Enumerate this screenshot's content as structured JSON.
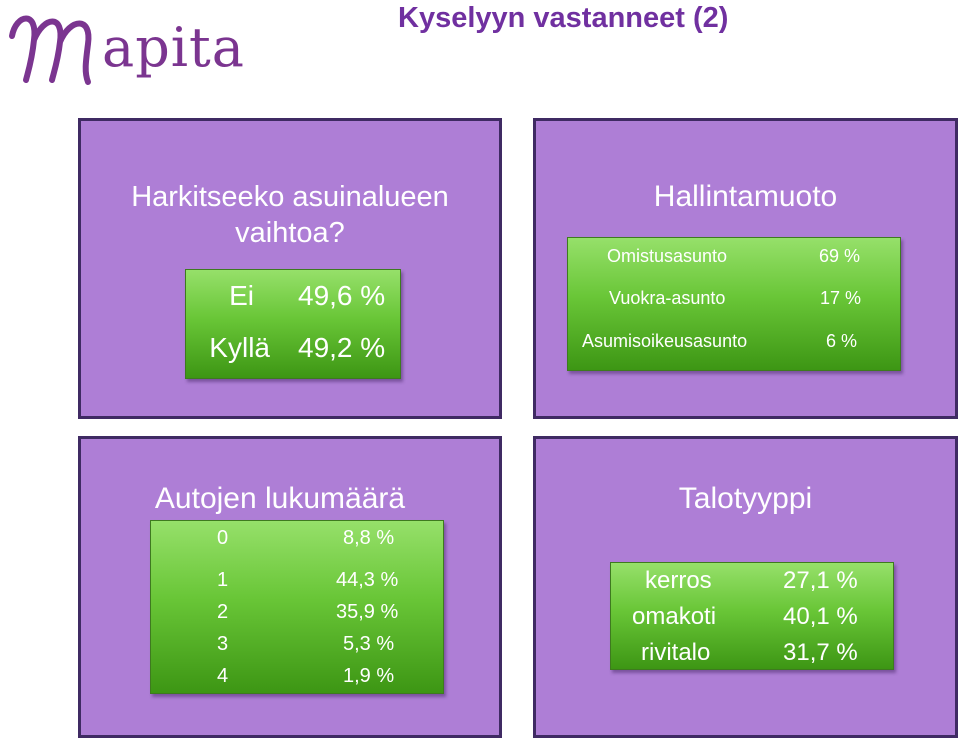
{
  "logo": {
    "text": "apita"
  },
  "title": "Kyselyyn vastanneet (2)",
  "panels": {
    "asuinalue": {
      "title": "Harkitseeko asuinalueen vaihtoa?",
      "rows": [
        {
          "label": "Ei",
          "value": "49,6 %"
        },
        {
          "label": "Kyllä",
          "value": "49,2 %"
        }
      ]
    },
    "hallinta": {
      "title": "Hallintamuoto",
      "rows": [
        {
          "label": "Omistusasunto",
          "value": "69 %"
        },
        {
          "label": "Vuokra-asunto",
          "value": "17 %"
        },
        {
          "label": "Asumisoikeusasunto",
          "value": "6 %"
        }
      ]
    },
    "autot": {
      "title": "Autojen lukumäärä",
      "rows": [
        {
          "label": "0",
          "value": "8,8 %"
        },
        {
          "label": "1",
          "value": "44,3 %"
        },
        {
          "label": "2",
          "value": "35,9 %"
        },
        {
          "label": "3",
          "value": "5,3 %"
        },
        {
          "label": "4",
          "value": "1,9 %"
        }
      ]
    },
    "talotyyppi": {
      "title": "Talotyyppi",
      "rows": [
        {
          "label": "kerros",
          "value": "27,1 %"
        },
        {
          "label": "omakoti",
          "value": "40,1 %"
        },
        {
          "label": "rivitalo",
          "value": "31,7 %"
        }
      ]
    }
  },
  "colors": {
    "panel": "#ae7ed6",
    "panel_border": "#3f2a63",
    "green_top": "#96e06a",
    "green_bottom": "#3d9614",
    "title": "#7030a0",
    "logo": "#7b3590"
  }
}
